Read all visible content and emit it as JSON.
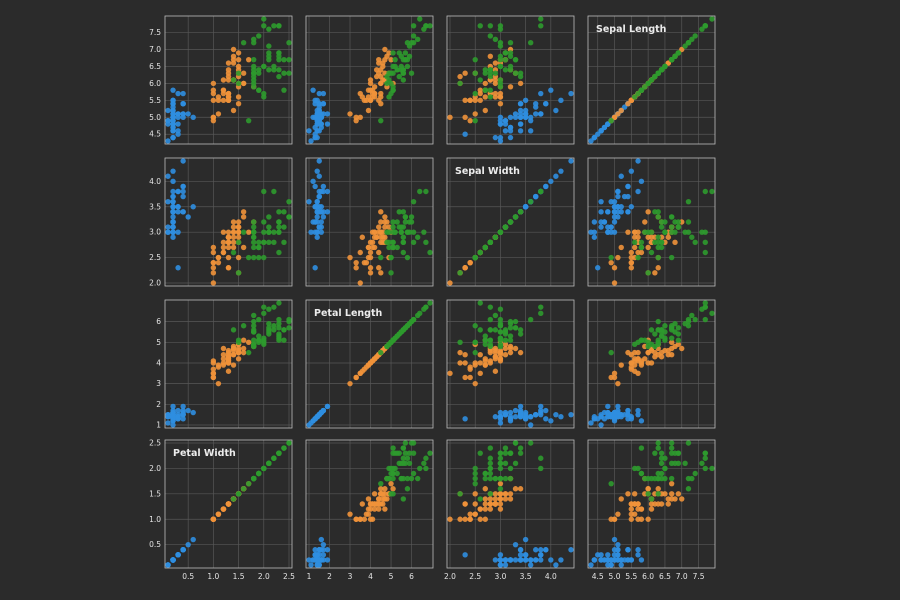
{
  "chart_data": {
    "type": "scatter-matrix",
    "variables": [
      {
        "key": "sl",
        "label": "Sepal Length",
        "range": [
          4.3,
          7.9
        ],
        "ticks": [
          "4.5",
          "5.0",
          "5.5",
          "6.0",
          "6.5",
          "7.0",
          "7.5"
        ]
      },
      {
        "key": "sw",
        "label": "Sepal Width",
        "range": [
          2.0,
          4.4
        ],
        "ticks": [
          "2.0",
          "2.5",
          "3.0",
          "3.5",
          "4.0"
        ]
      },
      {
        "key": "pl",
        "label": "Petal Length",
        "range": [
          1.0,
          6.9
        ],
        "ticks": [
          "1",
          "2",
          "3",
          "4",
          "5",
          "6"
        ]
      },
      {
        "key": "pw",
        "label": "Petal Width",
        "range": [
          0.1,
          2.5
        ],
        "ticks": [
          "0.5",
          "1.0",
          "1.5",
          "2.0",
          "2.5"
        ]
      }
    ],
    "row_order": [
      "sl",
      "sw",
      "pl",
      "pw"
    ],
    "col_order": [
      "pw",
      "pl",
      "sw",
      "sl"
    ],
    "grid": true,
    "series": [
      {
        "color": "#2f8ee0",
        "points": [
          [
            5.1,
            3.5,
            1.4,
            0.2
          ],
          [
            4.9,
            3.0,
            1.4,
            0.2
          ],
          [
            4.7,
            3.2,
            1.3,
            0.2
          ],
          [
            4.6,
            3.1,
            1.5,
            0.2
          ],
          [
            5.0,
            3.6,
            1.4,
            0.2
          ],
          [
            5.4,
            3.9,
            1.7,
            0.4
          ],
          [
            4.6,
            3.4,
            1.4,
            0.3
          ],
          [
            5.0,
            3.4,
            1.5,
            0.2
          ],
          [
            4.4,
            2.9,
            1.4,
            0.2
          ],
          [
            4.9,
            3.1,
            1.5,
            0.1
          ],
          [
            5.4,
            3.7,
            1.5,
            0.2
          ],
          [
            4.8,
            3.4,
            1.6,
            0.2
          ],
          [
            4.8,
            3.0,
            1.4,
            0.1
          ],
          [
            4.3,
            3.0,
            1.1,
            0.1
          ],
          [
            5.8,
            4.0,
            1.2,
            0.2
          ],
          [
            5.7,
            4.4,
            1.5,
            0.4
          ],
          [
            5.4,
            3.9,
            1.3,
            0.4
          ],
          [
            5.1,
            3.5,
            1.4,
            0.3
          ],
          [
            5.7,
            3.8,
            1.7,
            0.3
          ],
          [
            5.1,
            3.8,
            1.5,
            0.3
          ],
          [
            5.4,
            3.4,
            1.7,
            0.2
          ],
          [
            5.1,
            3.7,
            1.5,
            0.4
          ],
          [
            4.6,
            3.6,
            1.0,
            0.2
          ],
          [
            5.1,
            3.3,
            1.7,
            0.5
          ],
          [
            4.8,
            3.4,
            1.9,
            0.2
          ],
          [
            5.0,
            3.0,
            1.6,
            0.2
          ],
          [
            5.0,
            3.4,
            1.6,
            0.4
          ],
          [
            5.2,
            3.5,
            1.5,
            0.2
          ],
          [
            5.2,
            3.4,
            1.4,
            0.2
          ],
          [
            4.7,
            3.2,
            1.6,
            0.2
          ],
          [
            4.8,
            3.1,
            1.6,
            0.2
          ],
          [
            5.4,
            3.4,
            1.5,
            0.4
          ],
          [
            5.2,
            4.1,
            1.5,
            0.1
          ],
          [
            5.5,
            4.2,
            1.4,
            0.2
          ],
          [
            4.9,
            3.1,
            1.5,
            0.2
          ],
          [
            5.0,
            3.2,
            1.2,
            0.2
          ],
          [
            5.5,
            3.5,
            1.3,
            0.2
          ],
          [
            4.9,
            3.6,
            1.4,
            0.1
          ],
          [
            4.4,
            3.0,
            1.3,
            0.2
          ],
          [
            5.1,
            3.4,
            1.5,
            0.2
          ],
          [
            5.0,
            3.5,
            1.3,
            0.3
          ],
          [
            4.5,
            2.3,
            1.3,
            0.3
          ],
          [
            4.4,
            3.2,
            1.3,
            0.2
          ],
          [
            5.0,
            3.5,
            1.6,
            0.6
          ],
          [
            5.1,
            3.8,
            1.9,
            0.4
          ],
          [
            4.8,
            3.0,
            1.4,
            0.3
          ],
          [
            5.1,
            3.8,
            1.6,
            0.2
          ],
          [
            4.6,
            3.2,
            1.4,
            0.2
          ],
          [
            5.3,
            3.7,
            1.5,
            0.2
          ],
          [
            5.0,
            3.3,
            1.4,
            0.2
          ]
        ]
      },
      {
        "color": "#f0923a",
        "points": [
          [
            7.0,
            3.2,
            4.7,
            1.4
          ],
          [
            6.4,
            3.2,
            4.5,
            1.5
          ],
          [
            6.9,
            3.1,
            4.9,
            1.5
          ],
          [
            5.5,
            2.3,
            4.0,
            1.3
          ],
          [
            6.5,
            2.8,
            4.6,
            1.5
          ],
          [
            5.7,
            2.8,
            4.5,
            1.3
          ],
          [
            6.3,
            3.3,
            4.7,
            1.6
          ],
          [
            4.9,
            2.4,
            3.3,
            1.0
          ],
          [
            6.6,
            2.9,
            4.6,
            1.3
          ],
          [
            5.2,
            2.7,
            3.9,
            1.4
          ],
          [
            5.0,
            2.0,
            3.5,
            1.0
          ],
          [
            5.9,
            3.0,
            4.2,
            1.5
          ],
          [
            6.0,
            2.2,
            4.0,
            1.0
          ],
          [
            6.1,
            2.9,
            4.7,
            1.4
          ],
          [
            5.6,
            2.9,
            3.6,
            1.3
          ],
          [
            6.7,
            3.1,
            4.4,
            1.4
          ],
          [
            5.6,
            3.0,
            4.5,
            1.5
          ],
          [
            5.8,
            2.7,
            4.1,
            1.0
          ],
          [
            6.2,
            2.2,
            4.5,
            1.5
          ],
          [
            5.6,
            2.5,
            3.9,
            1.1
          ],
          [
            5.9,
            3.2,
            4.8,
            1.8
          ],
          [
            6.1,
            2.8,
            4.0,
            1.3
          ],
          [
            6.3,
            2.5,
            4.9,
            1.5
          ],
          [
            6.1,
            2.8,
            4.7,
            1.2
          ],
          [
            6.4,
            2.9,
            4.3,
            1.3
          ],
          [
            6.6,
            3.0,
            4.4,
            1.4
          ],
          [
            6.8,
            2.8,
            4.8,
            1.4
          ],
          [
            6.7,
            3.0,
            5.0,
            1.7
          ],
          [
            6.0,
            2.9,
            4.5,
            1.5
          ],
          [
            5.7,
            2.6,
            3.5,
            1.0
          ],
          [
            5.5,
            2.4,
            3.8,
            1.1
          ],
          [
            5.5,
            2.4,
            3.7,
            1.0
          ],
          [
            5.8,
            2.7,
            3.9,
            1.2
          ],
          [
            6.0,
            2.7,
            5.1,
            1.6
          ],
          [
            5.4,
            3.0,
            4.5,
            1.5
          ],
          [
            6.0,
            3.4,
            4.5,
            1.6
          ],
          [
            6.7,
            3.1,
            4.7,
            1.5
          ],
          [
            6.3,
            2.3,
            4.4,
            1.3
          ],
          [
            5.6,
            3.0,
            4.1,
            1.3
          ],
          [
            5.5,
            2.5,
            4.0,
            1.3
          ],
          [
            5.5,
            2.6,
            4.4,
            1.2
          ],
          [
            6.1,
            3.0,
            4.6,
            1.4
          ],
          [
            5.8,
            2.6,
            4.0,
            1.2
          ],
          [
            5.0,
            2.3,
            3.3,
            1.0
          ],
          [
            5.6,
            2.7,
            4.2,
            1.3
          ],
          [
            5.7,
            3.0,
            4.2,
            1.2
          ],
          [
            5.7,
            2.9,
            4.2,
            1.3
          ],
          [
            6.2,
            2.9,
            4.3,
            1.3
          ],
          [
            5.1,
            2.5,
            3.0,
            1.1
          ],
          [
            5.7,
            2.8,
            4.1,
            1.3
          ]
        ]
      },
      {
        "color": "#2e9a2e",
        "points": [
          [
            6.3,
            3.3,
            6.0,
            2.5
          ],
          [
            5.8,
            2.7,
            5.1,
            1.9
          ],
          [
            7.1,
            3.0,
            5.9,
            2.1
          ],
          [
            6.3,
            2.9,
            5.6,
            1.8
          ],
          [
            6.5,
            3.0,
            5.8,
            2.2
          ],
          [
            7.6,
            3.0,
            6.6,
            2.1
          ],
          [
            4.9,
            2.5,
            4.5,
            1.7
          ],
          [
            7.3,
            2.9,
            6.3,
            1.8
          ],
          [
            6.7,
            2.5,
            5.8,
            1.8
          ],
          [
            7.2,
            3.6,
            6.1,
            2.5
          ],
          [
            6.5,
            3.2,
            5.1,
            2.0
          ],
          [
            6.4,
            2.7,
            5.3,
            1.9
          ],
          [
            6.8,
            3.0,
            5.5,
            2.1
          ],
          [
            5.7,
            2.5,
            5.0,
            2.0
          ],
          [
            5.8,
            2.8,
            5.1,
            2.4
          ],
          [
            6.4,
            3.2,
            5.3,
            2.3
          ],
          [
            6.5,
            3.0,
            5.5,
            1.8
          ],
          [
            7.7,
            3.8,
            6.7,
            2.2
          ],
          [
            7.7,
            2.6,
            6.9,
            2.3
          ],
          [
            6.0,
            2.2,
            5.0,
            1.5
          ],
          [
            6.9,
            3.2,
            5.7,
            2.3
          ],
          [
            5.6,
            2.8,
            4.9,
            2.0
          ],
          [
            7.7,
            2.8,
            6.7,
            2.0
          ],
          [
            6.3,
            2.7,
            4.9,
            1.8
          ],
          [
            6.7,
            3.3,
            5.7,
            2.1
          ],
          [
            7.2,
            3.2,
            6.0,
            1.8
          ],
          [
            6.2,
            2.8,
            4.8,
            1.8
          ],
          [
            6.1,
            3.0,
            4.9,
            1.8
          ],
          [
            6.4,
            2.8,
            5.6,
            2.1
          ],
          [
            7.2,
            3.0,
            5.8,
            1.6
          ],
          [
            7.4,
            2.8,
            6.1,
            1.9
          ],
          [
            7.9,
            3.8,
            6.4,
            2.0
          ],
          [
            6.4,
            2.8,
            5.6,
            2.2
          ],
          [
            6.3,
            2.8,
            5.1,
            1.5
          ],
          [
            6.1,
            2.6,
            5.6,
            1.4
          ],
          [
            7.7,
            3.0,
            6.1,
            2.3
          ],
          [
            6.3,
            3.4,
            5.6,
            2.4
          ],
          [
            6.4,
            3.1,
            5.5,
            1.8
          ],
          [
            6.0,
            3.0,
            4.8,
            1.8
          ],
          [
            6.9,
            3.1,
            5.4,
            2.1
          ],
          [
            6.7,
            3.1,
            5.6,
            2.4
          ],
          [
            6.9,
            3.1,
            5.1,
            2.3
          ],
          [
            5.8,
            2.7,
            5.1,
            1.9
          ],
          [
            6.8,
            3.2,
            5.9,
            2.3
          ],
          [
            6.7,
            3.3,
            5.7,
            2.5
          ],
          [
            6.7,
            3.0,
            5.2,
            2.3
          ],
          [
            6.3,
            2.5,
            5.0,
            1.9
          ],
          [
            6.5,
            3.0,
            5.2,
            2.0
          ],
          [
            6.2,
            3.4,
            5.4,
            2.3
          ],
          [
            5.9,
            3.0,
            5.1,
            1.8
          ]
        ]
      }
    ]
  }
}
